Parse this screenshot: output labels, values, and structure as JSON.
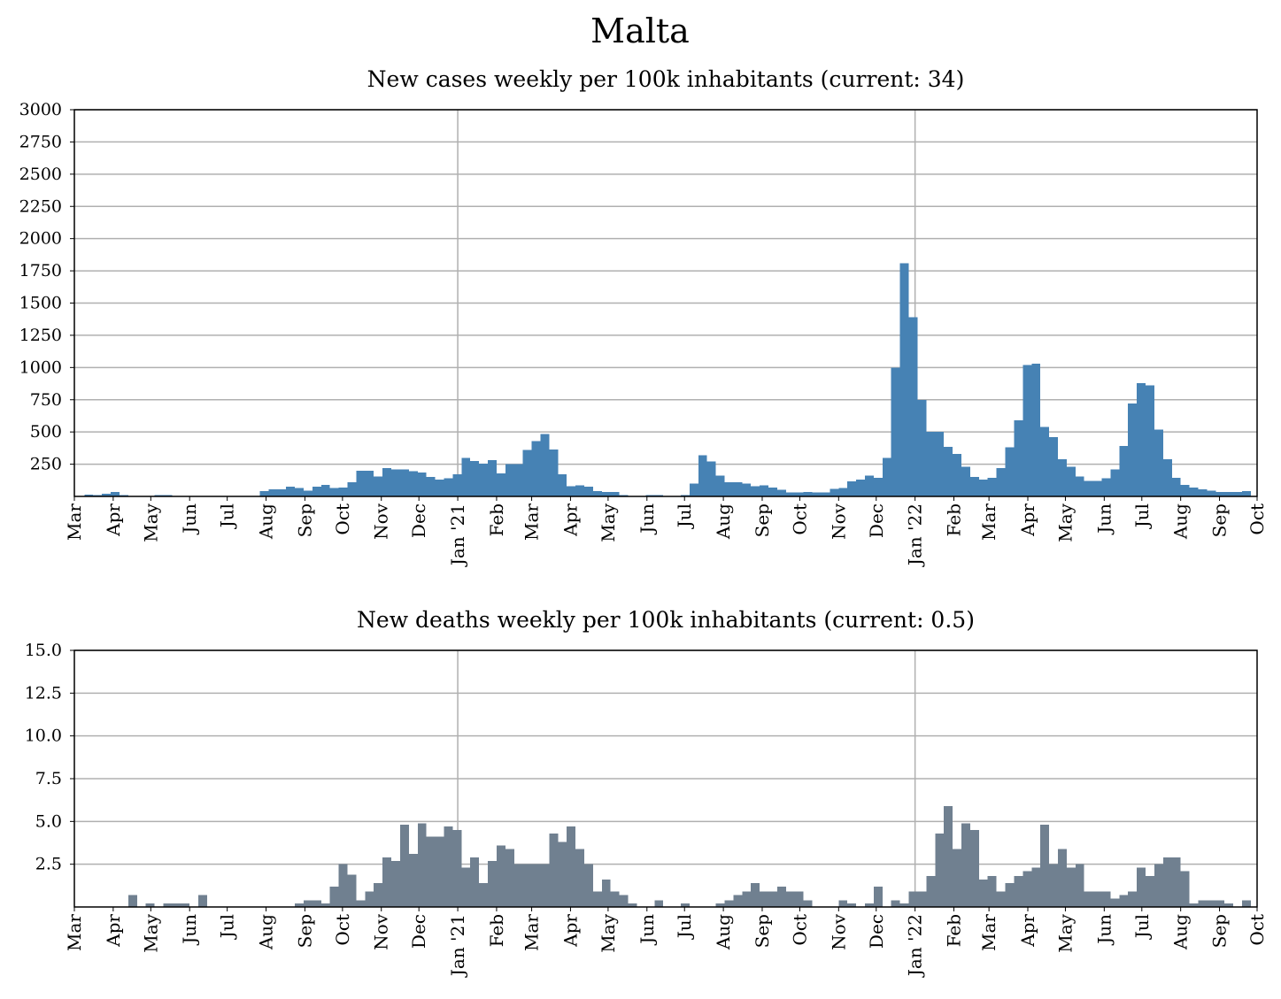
{
  "title": "Malta",
  "charts": [
    {
      "type": "bar",
      "title": "New cases weekly per 100k inhabitants (current: 34)",
      "color": "#4682b4",
      "ylim": [
        0,
        3000
      ],
      "yticks": [
        "250",
        "500",
        "750",
        "1000",
        "1250",
        "1500",
        "1750",
        "2000",
        "2250",
        "2500",
        "2750",
        "3000"
      ],
      "ytick_values": [
        250,
        500,
        750,
        1000,
        1250,
        1500,
        1750,
        2000,
        2250,
        2500,
        2750,
        3000
      ],
      "grid": true
    },
    {
      "type": "bar",
      "title": "New deaths weekly per 100k inhabitants (current: 0.5)",
      "color": "#708090",
      "ylim": [
        0,
        15
      ],
      "yticks": [
        "2.5",
        "5.0",
        "7.5",
        "10.0",
        "12.5",
        "15.0"
      ],
      "ytick_values": [
        2.5,
        5.0,
        7.5,
        10.0,
        12.5,
        15.0
      ],
      "grid": true
    }
  ],
  "x_axis": {
    "labels": [
      "Mar",
      "Apr",
      "May",
      "Jun",
      "Jul",
      "Aug",
      "Sep",
      "Oct",
      "Nov",
      "Dec",
      "Jan '21",
      "Feb",
      "Mar",
      "Apr",
      "May",
      "Jun",
      "Jul",
      "Aug",
      "Sep",
      "Oct",
      "Nov",
      "Dec",
      "Jan '22",
      "Feb",
      "Mar",
      "Apr",
      "May",
      "Jun",
      "Jul",
      "Aug",
      "Sep",
      "Oct"
    ],
    "start": "2020-03-01",
    "end": "2022-10-01",
    "vertical_lines_at": [
      "Jan '21",
      "Jan '22"
    ]
  },
  "chart_data": [
    {
      "type": "bar",
      "title": "New cases weekly per 100k inhabitants (current: 34)",
      "x_start": "2020-03-02",
      "x_step_days": 7,
      "values": [
        0,
        15,
        10,
        20,
        35,
        10,
        5,
        5,
        5,
        10,
        10,
        5,
        5,
        5,
        5,
        5,
        5,
        5,
        5,
        5,
        5,
        40,
        55,
        55,
        75,
        65,
        45,
        75,
        90,
        65,
        70,
        110,
        200,
        200,
        155,
        220,
        210,
        210,
        195,
        185,
        150,
        130,
        140,
        170,
        300,
        275,
        255,
        280,
        180,
        250,
        250,
        360,
        430,
        485,
        365,
        170,
        80,
        85,
        75,
        40,
        35,
        35,
        10,
        5,
        5,
        10,
        10,
        5,
        5,
        10,
        100,
        320,
        270,
        160,
        110,
        110,
        100,
        80,
        85,
        70,
        50,
        30,
        30,
        35,
        30,
        30,
        60,
        65,
        115,
        130,
        160,
        145,
        300,
        1000,
        1810,
        1390,
        750,
        500,
        500,
        385,
        330,
        230,
        150,
        130,
        145,
        220,
        380,
        590,
        1020,
        1030,
        540,
        460,
        290,
        230,
        155,
        120,
        120,
        140,
        210,
        390,
        720,
        880,
        860,
        520,
        290,
        145,
        90,
        70,
        55,
        45,
        35,
        35,
        35,
        40,
        34
      ],
      "ylim": [
        0,
        3000
      ]
    },
    {
      "type": "bar",
      "title": "New deaths weekly per 100k inhabitants (current: 0.5)",
      "x_start": "2020-03-02",
      "x_step_days": 7,
      "values": [
        0,
        0,
        0,
        0,
        0,
        0,
        0.7,
        0,
        0.2,
        0,
        0.2,
        0.2,
        0.2,
        0,
        0.7,
        0,
        0,
        0,
        0,
        0,
        0,
        0,
        0,
        0,
        0,
        0.2,
        0.4,
        0.4,
        0.2,
        1.2,
        2.5,
        1.9,
        0.4,
        0.9,
        1.4,
        2.9,
        2.7,
        4.8,
        3.1,
        4.9,
        4.1,
        4.1,
        4.7,
        4.5,
        2.3,
        2.9,
        1.4,
        2.7,
        3.6,
        3.4,
        2.5,
        2.5,
        2.5,
        2.5,
        4.3,
        3.8,
        4.7,
        3.4,
        2.5,
        0.9,
        1.6,
        0.9,
        0.7,
        0.2,
        0,
        0,
        0.4,
        0,
        0,
        0.2,
        0,
        0,
        0,
        0.2,
        0.4,
        0.7,
        0.9,
        1.4,
        0.9,
        0.9,
        1.2,
        0.9,
        0.9,
        0.4,
        0,
        0,
        0,
        0.4,
        0.2,
        0,
        0.2,
        1.2,
        0,
        0.4,
        0.2,
        0.9,
        0.9,
        1.8,
        4.3,
        5.9,
        3.4,
        4.9,
        4.5,
        1.6,
        1.8,
        0.9,
        1.4,
        1.8,
        2.1,
        2.3,
        4.8,
        2.5,
        3.4,
        2.3,
        2.5,
        0.9,
        0.9,
        0.9,
        0.5,
        0.7,
        0.9,
        2.3,
        1.8,
        2.5,
        2.9,
        2.9,
        2.1,
        0.2,
        0.4,
        0.4,
        0.4,
        0.2,
        0,
        0.4,
        0,
        0.5
      ],
      "ylim": [
        0,
        15
      ]
    }
  ]
}
